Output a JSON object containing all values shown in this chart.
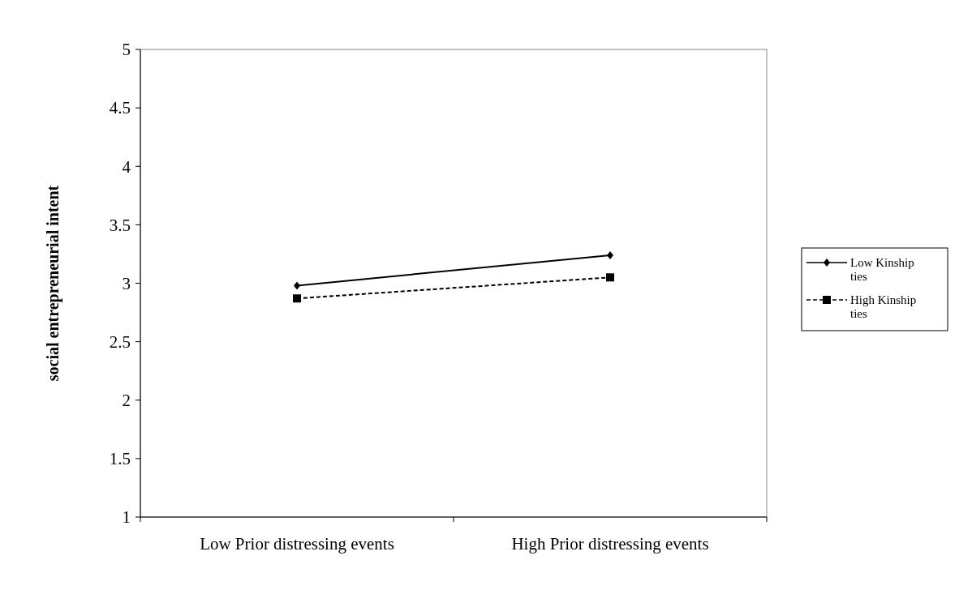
{
  "chart_data": {
    "type": "line",
    "ylabel": "social entrepreneurial intent",
    "categories": [
      "Low Prior distressing events",
      "High Prior distressing events"
    ],
    "ylim": [
      1,
      5
    ],
    "yticks": [
      1,
      1.5,
      2,
      2.5,
      3,
      3.5,
      4,
      4.5,
      5
    ],
    "legend": "right",
    "grid": false,
    "series": [
      {
        "name": "Low Kinship ties",
        "color": "#000000",
        "values": [
          2.98,
          3.24
        ],
        "marker": "diamond",
        "line_style": "solid"
      },
      {
        "name": "High Kinship ties",
        "color": "#000000",
        "values": [
          2.87,
          3.05
        ],
        "marker": "square",
        "line_style": "dashed"
      }
    ]
  }
}
